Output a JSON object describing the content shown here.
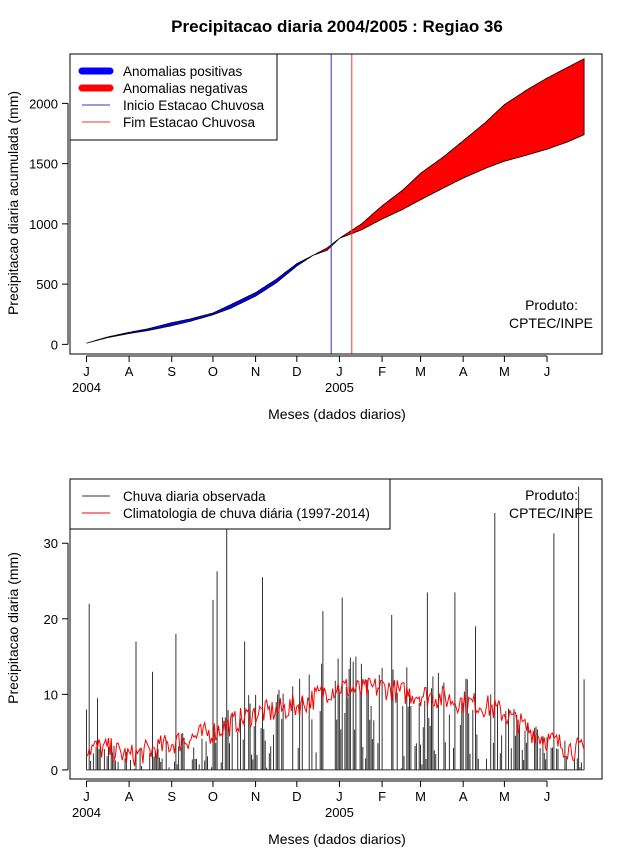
{
  "chart_data": [
    {
      "type": "area",
      "title": "Precipitacao diaria 2004/2005 : Regiao 36",
      "xlabel": "Meses (dados diarios)",
      "ylabel": "Precipitacao diaria acumulada (mm)",
      "ylim": [
        -80,
        2410
      ],
      "yticks": [
        0,
        500,
        1000,
        1500,
        2000
      ],
      "xlim_days": [
        -12,
        375
      ],
      "month_ticks": [
        {
          "label": "J",
          "day": 0
        },
        {
          "label": "A",
          "day": 31
        },
        {
          "label": "S",
          "day": 62
        },
        {
          "label": "O",
          "day": 92
        },
        {
          "label": "N",
          "day": 123
        },
        {
          "label": "D",
          "day": 153
        },
        {
          "label": "J",
          "day": 184
        },
        {
          "label": "F",
          "day": 215
        },
        {
          "label": "M",
          "day": 243
        },
        {
          "label": "A",
          "day": 274
        },
        {
          "label": "M",
          "day": 304
        },
        {
          "label": "J",
          "day": 335
        }
      ],
      "year_labels": [
        {
          "label": "2004",
          "day": 0
        },
        {
          "label": "2005",
          "day": 184
        }
      ],
      "observed_cumulative": {
        "days": [
          0,
          15,
          31,
          45,
          62,
          75,
          92,
          105,
          123,
          138,
          153,
          165,
          175,
          184,
          200,
          215,
          230,
          243,
          260,
          274,
          290,
          304,
          320,
          335,
          350,
          362
        ],
        "values": [
          10,
          60,
          100,
          130,
          180,
          210,
          260,
          330,
          430,
          540,
          670,
          740,
          780,
          880,
          1000,
          1150,
          1280,
          1420,
          1560,
          1690,
          1840,
          1990,
          2110,
          2210,
          2300,
          2370
        ]
      },
      "climatology_cumulative": {
        "days": [
          0,
          15,
          31,
          45,
          62,
          75,
          92,
          105,
          123,
          138,
          153,
          165,
          175,
          184,
          200,
          215,
          230,
          243,
          260,
          274,
          290,
          304,
          320,
          335,
          350,
          362
        ],
        "values": [
          10,
          55,
          90,
          115,
          155,
          190,
          245,
          300,
          400,
          510,
          650,
          740,
          800,
          880,
          950,
          1040,
          1120,
          1200,
          1300,
          1380,
          1460,
          1520,
          1570,
          1620,
          1680,
          1740
        ]
      },
      "rainy_season_start_day": 178,
      "rainy_season_end_day": 193,
      "legend": [
        {
          "label": "Anomalias positivas",
          "color": "#0000ff"
        },
        {
          "label": "Anomalias negativas",
          "color": "#ff0000"
        },
        {
          "label": "Inicio Estacao Chuvosa",
          "color": "#3333cc"
        },
        {
          "label": "Fim Estacao Chuvosa",
          "color": "#ff3333"
        }
      ],
      "legend_position": "top-left",
      "product_note": [
        "Produto:",
        "CPTEC/INPE"
      ]
    },
    {
      "type": "bar",
      "title": "",
      "xlabel": "Meses (dados diarios)",
      "ylabel": "Precipitacao diaria (mm)",
      "ylim": [
        -1.2,
        38.5
      ],
      "yticks": [
        0,
        10,
        20,
        30
      ],
      "xlim_days": [
        -12,
        375
      ],
      "month_ticks": [
        {
          "label": "J",
          "day": 0
        },
        {
          "label": "A",
          "day": 31
        },
        {
          "label": "S",
          "day": 62
        },
        {
          "label": "O",
          "day": 92
        },
        {
          "label": "N",
          "day": 123
        },
        {
          "label": "D",
          "day": 153
        },
        {
          "label": "J",
          "day": 184
        },
        {
          "label": "F",
          "day": 215
        },
        {
          "label": "M",
          "day": 243
        },
        {
          "label": "A",
          "day": 274
        },
        {
          "label": "M",
          "day": 304
        },
        {
          "label": "J",
          "day": 335
        }
      ],
      "year_labels": [
        {
          "label": "2004",
          "day": 0
        },
        {
          "label": "2005",
          "day": 184
        }
      ],
      "observed_daily_peaks": [
        {
          "day": 0,
          "value": 8
        },
        {
          "day": 2,
          "value": 22
        },
        {
          "day": 8,
          "value": 9.5
        },
        {
          "day": 36,
          "value": 17
        },
        {
          "day": 48,
          "value": 13
        },
        {
          "day": 65,
          "value": 18
        },
        {
          "day": 92,
          "value": 22.5
        },
        {
          "day": 95,
          "value": 26.3
        },
        {
          "day": 102,
          "value": 32.5
        },
        {
          "day": 115,
          "value": 17
        },
        {
          "day": 128,
          "value": 25.5
        },
        {
          "day": 172,
          "value": 21
        },
        {
          "day": 186,
          "value": 22.8
        },
        {
          "day": 196,
          "value": 15
        },
        {
          "day": 222,
          "value": 20.5
        },
        {
          "day": 248,
          "value": 23.5
        },
        {
          "day": 268,
          "value": 23.5
        },
        {
          "day": 283,
          "value": 19
        },
        {
          "day": 297,
          "value": 34
        },
        {
          "day": 340,
          "value": 31.3
        },
        {
          "day": 358,
          "value": 37.5
        },
        {
          "day": 362,
          "value": 12
        }
      ],
      "climatology_daily": {
        "days": [
          0,
          15,
          31,
          45,
          62,
          75,
          92,
          110,
          123,
          138,
          153,
          165,
          175,
          184,
          200,
          215,
          230,
          243,
          260,
          274,
          290,
          304,
          320,
          335,
          350,
          362
        ],
        "values": [
          3,
          2.8,
          1.8,
          2.5,
          3.5,
          4.2,
          5,
          6.5,
          7.5,
          7.8,
          8.5,
          9.5,
          10.5,
          11,
          10.5,
          11,
          10.2,
          10,
          9.5,
          9,
          8.5,
          7.5,
          5.5,
          4,
          3,
          2.5
        ]
      },
      "legend": [
        {
          "label": "Chuva diaria observada",
          "color": "#333333"
        },
        {
          "label": "Climatologia de chuva diária (1997-2014)",
          "color": "#ff0000"
        }
      ],
      "legend_position": "top-left",
      "product_note": [
        "Produto:",
        "CPTEC/INPE"
      ]
    }
  ]
}
